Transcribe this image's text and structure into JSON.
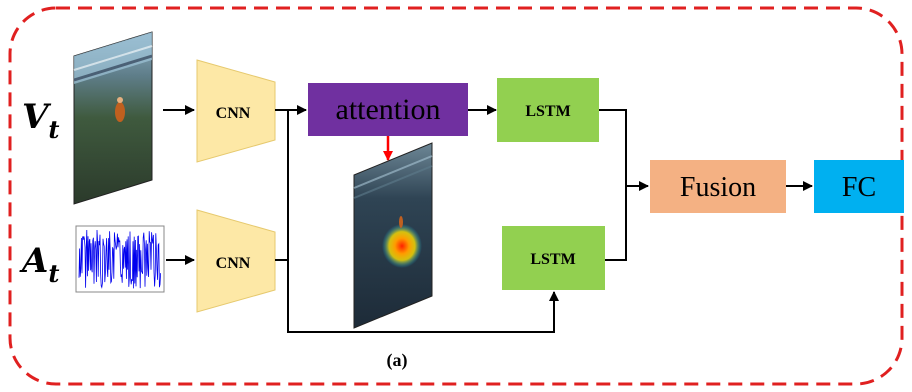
{
  "inputs": {
    "visual_symbol": "V",
    "visual_subscript": "t",
    "audio_symbol": "A",
    "audio_subscript": "t"
  },
  "blocks": {
    "cnn_top_label": "CNN",
    "cnn_bottom_label": "CNN",
    "attention_label": "attention",
    "lstm_top_label": "LSTM",
    "lstm_bottom_label": "LSTM",
    "fusion_label": "Fusion",
    "fc_label": "FC"
  },
  "caption": "(a)",
  "colors": {
    "border_dash": "#e02020",
    "cnn_fill": "#fde8a6",
    "attention_fill": "#7030a0",
    "lstm_fill": "#92d050",
    "fusion_fill": "#f4b183",
    "fc_fill": "#00b0f0",
    "attention_arrow": "#ff0000",
    "waveform": "#0000ee",
    "arrow": "#000000"
  },
  "icons": {
    "video_frame": "video-frame-image",
    "audio_waveform": "audio-waveform-image",
    "attention_map": "attention-heatmap-image"
  }
}
